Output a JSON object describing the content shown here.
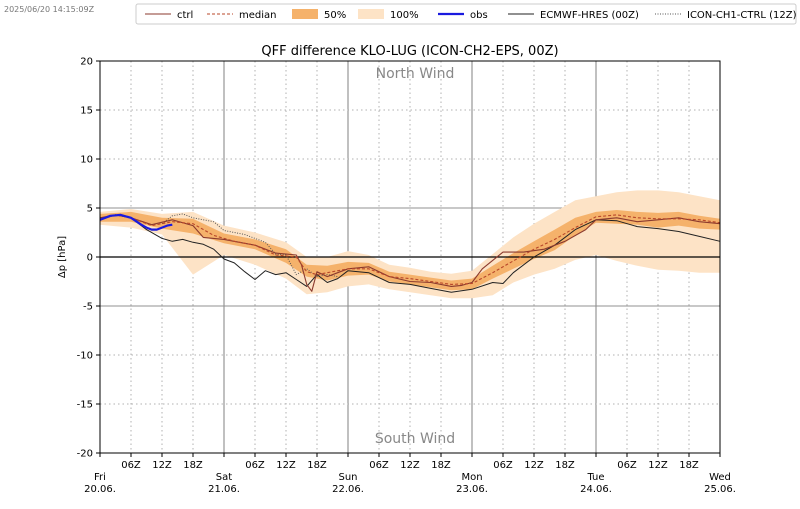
{
  "timestamp": "2025/06/20 14:15:09Z",
  "colors": {
    "ctrl": "#8b3a2e",
    "median": "#b8472a",
    "band50": "#f5b26b",
    "band100": "#fde3c6",
    "obs": "#1a1adf",
    "ecmwf": "#222222",
    "ch1": "#555555"
  },
  "chart_data": {
    "type": "line",
    "title": "QFF difference KLO-LUG (ICON-CH2-EPS, 00Z)",
    "ylabel": "Δp [hPa]",
    "xlabel": "",
    "ylim": [
      -20,
      20
    ],
    "xlim_hours": [
      0,
      120
    ],
    "yticks": [
      -20,
      -15,
      -10,
      -5,
      0,
      5,
      10,
      15,
      20
    ],
    "grid": true,
    "legend_position": "top",
    "annotations": {
      "top": "North Wind",
      "bottom": "South Wind"
    },
    "day_ticks": [
      {
        "h": 0,
        "day": "Fri",
        "date": "20.06."
      },
      {
        "h": 24,
        "day": "Sat",
        "date": "21.06."
      },
      {
        "h": 48,
        "day": "Sun",
        "date": "22.06."
      },
      {
        "h": 72,
        "day": "Mon",
        "date": "23.06."
      },
      {
        "h": 96,
        "day": "Tue",
        "date": "24.06."
      },
      {
        "h": 120,
        "day": "Wed",
        "date": "25.06."
      }
    ],
    "hour_ticks": [
      {
        "h": 6,
        "label": "06Z"
      },
      {
        "h": 12,
        "label": "12Z"
      },
      {
        "h": 18,
        "label": "18Z"
      },
      {
        "h": 30,
        "label": "06Z"
      },
      {
        "h": 36,
        "label": "12Z"
      },
      {
        "h": 42,
        "label": "18Z"
      },
      {
        "h": 54,
        "label": "06Z"
      },
      {
        "h": 60,
        "label": "12Z"
      },
      {
        "h": 66,
        "label": "18Z"
      },
      {
        "h": 78,
        "label": "06Z"
      },
      {
        "h": 84,
        "label": "12Z"
      },
      {
        "h": 90,
        "label": "18Z"
      },
      {
        "h": 102,
        "label": "06Z"
      },
      {
        "h": 108,
        "label": "12Z"
      },
      {
        "h": 114,
        "label": "18Z"
      }
    ],
    "legend": [
      {
        "key": "ctrl",
        "label": "ctrl",
        "kind": "line"
      },
      {
        "key": "median",
        "label": "median",
        "kind": "dashed"
      },
      {
        "key": "band50",
        "label": "50%",
        "kind": "patch"
      },
      {
        "key": "band100",
        "label": "100%",
        "kind": "patch"
      },
      {
        "key": "obs",
        "label": "obs",
        "kind": "bold"
      },
      {
        "key": "ecmwf",
        "label": "ECMWF-HRES (00Z)",
        "kind": "line"
      },
      {
        "key": "ch1",
        "label": "ICON-CH1-CTRL (12Z)",
        "kind": "dotted"
      }
    ],
    "series": [
      {
        "name": "ctrl",
        "x": [
          0,
          3,
          6,
          10,
          14,
          18,
          20,
          24,
          28,
          30,
          34,
          38,
          39,
          40,
          41,
          42,
          44,
          46,
          48,
          52,
          56,
          60,
          64,
          68,
          70,
          72,
          74,
          78,
          82,
          86,
          90,
          94,
          96,
          100,
          104,
          108,
          112,
          116,
          120
        ],
        "y": [
          4.0,
          4.3,
          4.0,
          3.3,
          3.8,
          3.2,
          2.0,
          1.8,
          1.4,
          1.2,
          0.4,
          0.2,
          -0.8,
          -2.8,
          -3.5,
          -1.5,
          -2.0,
          -1.6,
          -1.2,
          -1.0,
          -2.0,
          -2.5,
          -2.6,
          -3.0,
          -2.9,
          -2.6,
          -1.2,
          0.5,
          0.5,
          0.8,
          1.6,
          2.8,
          3.8,
          4.0,
          3.6,
          3.8,
          4.0,
          3.6,
          3.4
        ]
      },
      {
        "name": "median",
        "x": [
          0,
          3,
          6,
          10,
          14,
          18,
          22,
          26,
          30,
          34,
          38,
          40,
          42,
          44,
          48,
          52,
          56,
          60,
          64,
          68,
          72,
          76,
          80,
          84,
          88,
          92,
          96,
          100,
          104,
          108,
          112,
          116,
          120
        ],
        "y": [
          3.8,
          4.3,
          4.0,
          3.2,
          3.6,
          3.4,
          2.2,
          1.6,
          1.2,
          0.2,
          0.0,
          -1.5,
          -1.8,
          -1.6,
          -1.2,
          -1.2,
          -2.0,
          -2.2,
          -2.5,
          -2.8,
          -2.7,
          -1.6,
          -0.4,
          0.8,
          1.8,
          3.0,
          4.1,
          4.3,
          4.0,
          3.9,
          3.9,
          3.8,
          3.5
        ]
      },
      {
        "name": "band50_upper",
        "x": [
          0,
          6,
          12,
          18,
          24,
          30,
          36,
          40,
          44,
          48,
          52,
          56,
          60,
          64,
          68,
          72,
          76,
          80,
          84,
          88,
          92,
          96,
          100,
          104,
          108,
          112,
          116,
          120
        ],
        "y": [
          4.4,
          4.6,
          4.0,
          3.9,
          2.4,
          1.8,
          0.8,
          -0.8,
          -0.9,
          -0.5,
          -0.6,
          -1.5,
          -1.8,
          -2.1,
          -2.4,
          -2.2,
          -0.9,
          0.4,
          1.6,
          2.8,
          4.0,
          4.6,
          4.8,
          4.6,
          4.5,
          4.6,
          4.2,
          3.9
        ]
      },
      {
        "name": "band50_lower",
        "x": [
          0,
          6,
          12,
          18,
          24,
          30,
          36,
          40,
          44,
          48,
          52,
          56,
          60,
          64,
          68,
          72,
          76,
          80,
          84,
          88,
          92,
          96,
          100,
          104,
          108,
          112,
          116,
          120
        ],
        "y": [
          3.6,
          3.6,
          2.9,
          2.4,
          1.4,
          0.8,
          -0.6,
          -2.0,
          -2.4,
          -1.9,
          -1.8,
          -2.5,
          -2.8,
          -3.1,
          -3.4,
          -3.3,
          -2.2,
          -1.2,
          -0.2,
          0.7,
          2.2,
          3.5,
          3.4,
          3.3,
          3.0,
          3.2,
          2.9,
          2.8
        ]
      },
      {
        "name": "band100_upper",
        "x": [
          0,
          6,
          12,
          18,
          24,
          30,
          36,
          40,
          44,
          48,
          52,
          56,
          60,
          64,
          68,
          72,
          76,
          80,
          84,
          88,
          92,
          96,
          100,
          104,
          108,
          112,
          116,
          120
        ],
        "y": [
          4.6,
          4.9,
          4.4,
          4.6,
          3.2,
          2.5,
          1.5,
          0.0,
          0.0,
          0.6,
          0.2,
          -0.8,
          -1.1,
          -1.5,
          -1.7,
          -1.4,
          0.3,
          2.0,
          3.4,
          4.6,
          5.8,
          6.2,
          6.6,
          6.8,
          6.8,
          6.6,
          6.2,
          5.8
        ]
      },
      {
        "name": "band100_lower",
        "x": [
          0,
          6,
          12,
          18,
          24,
          30,
          36,
          40,
          44,
          48,
          52,
          56,
          60,
          64,
          68,
          72,
          76,
          80,
          84,
          88,
          92,
          96,
          100,
          104,
          108,
          112,
          116,
          120
        ],
        "y": [
          3.3,
          3.0,
          2.3,
          -1.8,
          0.2,
          -0.8,
          -2.2,
          -3.8,
          -3.6,
          -3.0,
          -2.8,
          -3.3,
          -3.6,
          -3.9,
          -4.2,
          -4.2,
          -3.9,
          -2.6,
          -1.8,
          -1.2,
          -0.3,
          0.2,
          -0.4,
          -0.9,
          -1.3,
          -1.4,
          -1.6,
          -1.6
        ]
      },
      {
        "name": "obs",
        "x": [
          0,
          2,
          4,
          6,
          8,
          9,
          10,
          11,
          12,
          13,
          14
        ],
        "y": [
          3.8,
          4.2,
          4.3,
          4.0,
          3.3,
          3.0,
          2.8,
          2.8,
          3.0,
          3.2,
          3.3
        ]
      },
      {
        "name": "ECMWF-HRES (00Z)",
        "x": [
          0,
          3,
          6,
          9,
          12,
          14,
          16,
          18,
          20,
          22,
          24,
          26,
          28,
          30,
          32,
          34,
          36,
          38,
          40,
          42,
          44,
          46,
          48,
          52,
          56,
          60,
          64,
          68,
          72,
          76,
          78,
          80,
          84,
          88,
          92,
          96,
          100,
          104,
          108,
          112,
          116,
          120
        ],
        "y": [
          3.8,
          4.3,
          4.0,
          2.8,
          1.9,
          1.6,
          1.8,
          1.5,
          1.3,
          0.8,
          -0.2,
          -0.6,
          -1.5,
          -2.3,
          -1.4,
          -1.8,
          -1.6,
          -2.3,
          -3.0,
          -1.8,
          -2.6,
          -2.2,
          -1.4,
          -1.6,
          -2.6,
          -2.8,
          -3.2,
          -3.6,
          -3.3,
          -2.6,
          -2.7,
          -1.6,
          0.0,
          1.2,
          2.8,
          3.8,
          3.7,
          3.1,
          2.9,
          2.6,
          2.1,
          1.6
        ]
      },
      {
        "name": "ICON-CH1-CTRL (12Z)",
        "x": [
          12,
          14,
          16,
          18,
          20,
          22,
          24,
          28,
          32,
          34,
          36,
          38,
          40,
          42,
          44,
          46
        ],
        "y": [
          3.4,
          4.2,
          4.4,
          4.0,
          3.8,
          3.6,
          2.7,
          2.3,
          1.5,
          0.3,
          0.2,
          -1.8,
          -1.2,
          -2.0,
          -1.8,
          -2.0
        ]
      }
    ]
  }
}
